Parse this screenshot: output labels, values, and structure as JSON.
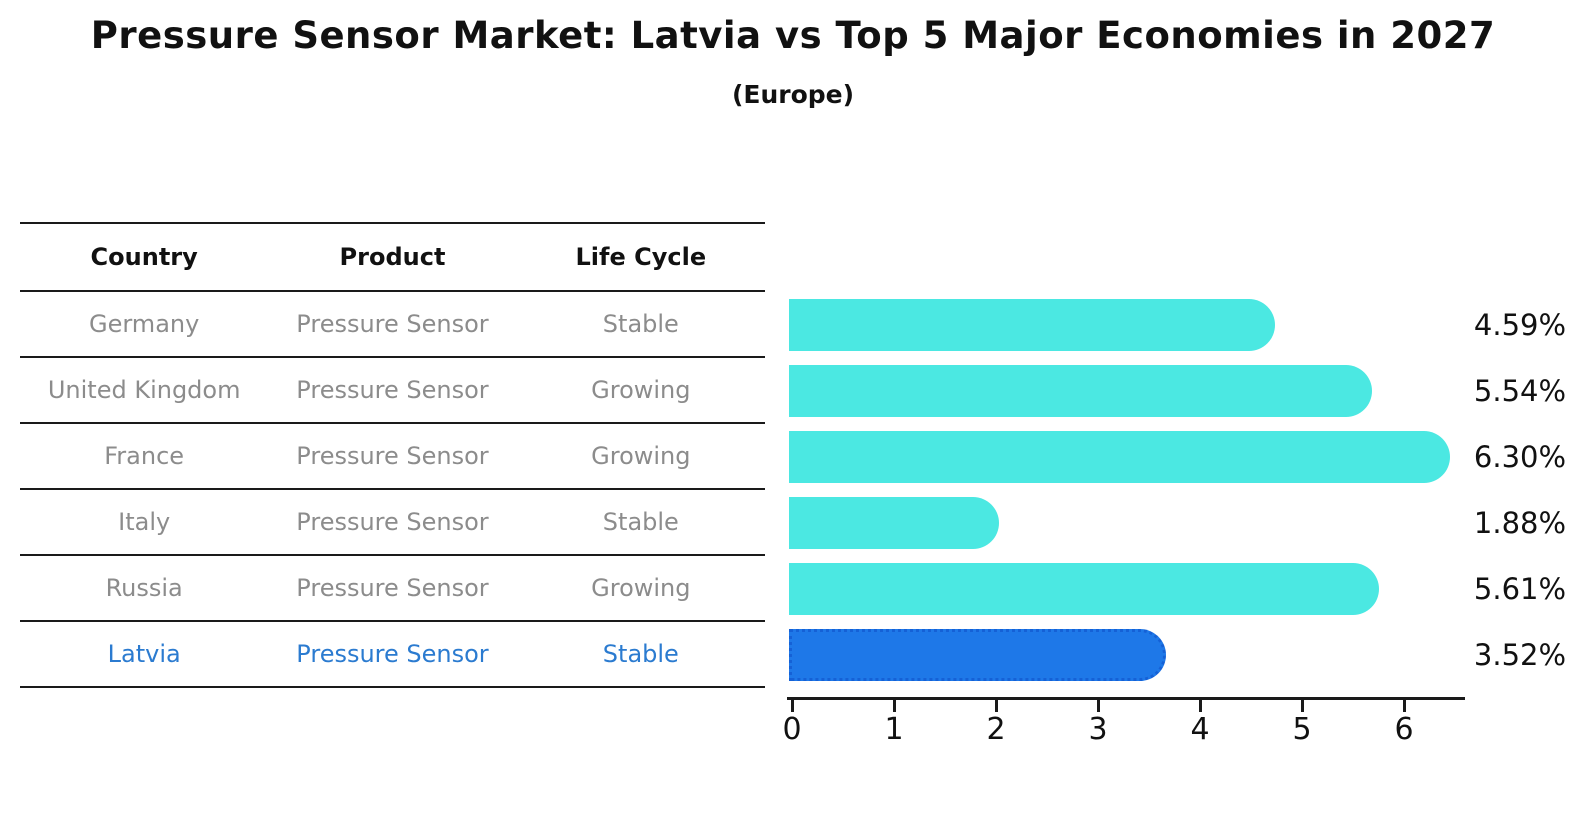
{
  "title": "Pressure Sensor Market: Latvia vs Top 5 Major Economies in 2027",
  "subtitle": "(Europe)",
  "table": {
    "headers": [
      "Country",
      "Product",
      "Life Cycle"
    ],
    "rows": [
      {
        "country": "Germany",
        "product": "Pressure Sensor",
        "life_cycle": "Stable",
        "highlighted": false
      },
      {
        "country": "United Kingdom",
        "product": "Pressure Sensor",
        "life_cycle": "Growing",
        "highlighted": false
      },
      {
        "country": "France",
        "product": "Pressure Sensor",
        "life_cycle": "Growing",
        "highlighted": false
      },
      {
        "country": "Italy",
        "product": "Pressure Sensor",
        "life_cycle": "Stable",
        "highlighted": false
      },
      {
        "country": "Russia",
        "product": "Pressure Sensor",
        "life_cycle": "Growing",
        "highlighted": false
      },
      {
        "country": "Latvia",
        "product": "Pressure Sensor",
        "life_cycle": "Stable",
        "highlighted": true
      }
    ]
  },
  "chart_data": {
    "type": "bar",
    "orientation": "horizontal",
    "title": "Pressure Sensor Market: Latvia vs Top 5 Major Economies in 2027",
    "subtitle": "(Europe)",
    "categories": [
      "Germany",
      "United Kingdom",
      "France",
      "Italy",
      "Russia",
      "Latvia"
    ],
    "values": [
      4.59,
      5.54,
      6.3,
      1.88,
      5.61,
      3.52
    ],
    "value_labels": [
      "4.59%",
      "5.54%",
      "6.30%",
      "1.88%",
      "5.61%",
      "3.52%"
    ],
    "highlight_index": 5,
    "xlabel": "",
    "ylabel": "",
    "xlim": [
      0,
      6.68
    ],
    "x_ticks": [
      "0",
      "1",
      "2",
      "3",
      "4",
      "5",
      "6"
    ],
    "grid": false,
    "legend": false
  },
  "colors": {
    "bar": "#4BE8E2",
    "highlight_bar": "#1E78E8",
    "highlight_border": "#1561D6",
    "highlight_text": "#2B7BD0",
    "row_text": "#8C8C8C",
    "axis": "#1a1a1a"
  }
}
